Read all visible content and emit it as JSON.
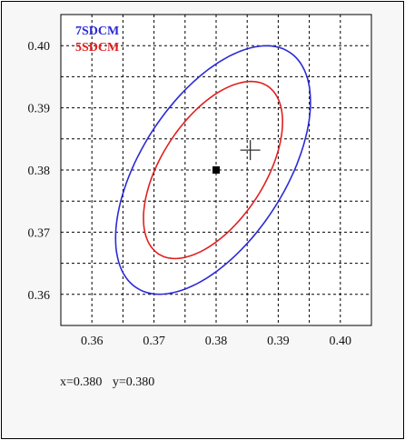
{
  "chart_data": {
    "type": "scatter",
    "title": "",
    "xlabel": "",
    "ylabel": "",
    "xlim": [
      0.355,
      0.405
    ],
    "ylim": [
      0.355,
      0.405
    ],
    "x_ticks": [
      0.36,
      0.37,
      0.38,
      0.39,
      0.4
    ],
    "y_ticks": [
      0.36,
      0.37,
      0.38,
      0.39,
      0.4
    ],
    "x_tick_labels": [
      "0.36",
      "0.37",
      "0.38",
      "0.39",
      "0.40"
    ],
    "y_tick_labels": [
      "0.36",
      "0.37",
      "0.38",
      "0.39",
      "0.40"
    ],
    "grid": true,
    "legend_position": "top-left",
    "series": [
      {
        "name": "7SDCM",
        "kind": "ellipse",
        "color": "#2b2bd6",
        "center": [
          0.3795,
          0.38
        ],
        "semi_axes": [
          0.0226,
          0.0116
        ],
        "rotation_deg": 57
      },
      {
        "name": "5SDCM",
        "kind": "ellipse",
        "color": "#e02020",
        "center": [
          0.3795,
          0.38
        ],
        "semi_axes": [
          0.0161,
          0.0083
        ],
        "rotation_deg": 57
      },
      {
        "name": "",
        "kind": "point",
        "marker": "square",
        "color": "#000000",
        "points": [
          [
            0.38,
            0.38
          ]
        ]
      },
      {
        "name": "",
        "kind": "point",
        "marker": "cross",
        "color": "#333333",
        "points": [
          [
            0.3855,
            0.3832
          ]
        ]
      }
    ]
  },
  "readout": {
    "x_text": "x=0.380",
    "y_text": "y=0.380"
  }
}
